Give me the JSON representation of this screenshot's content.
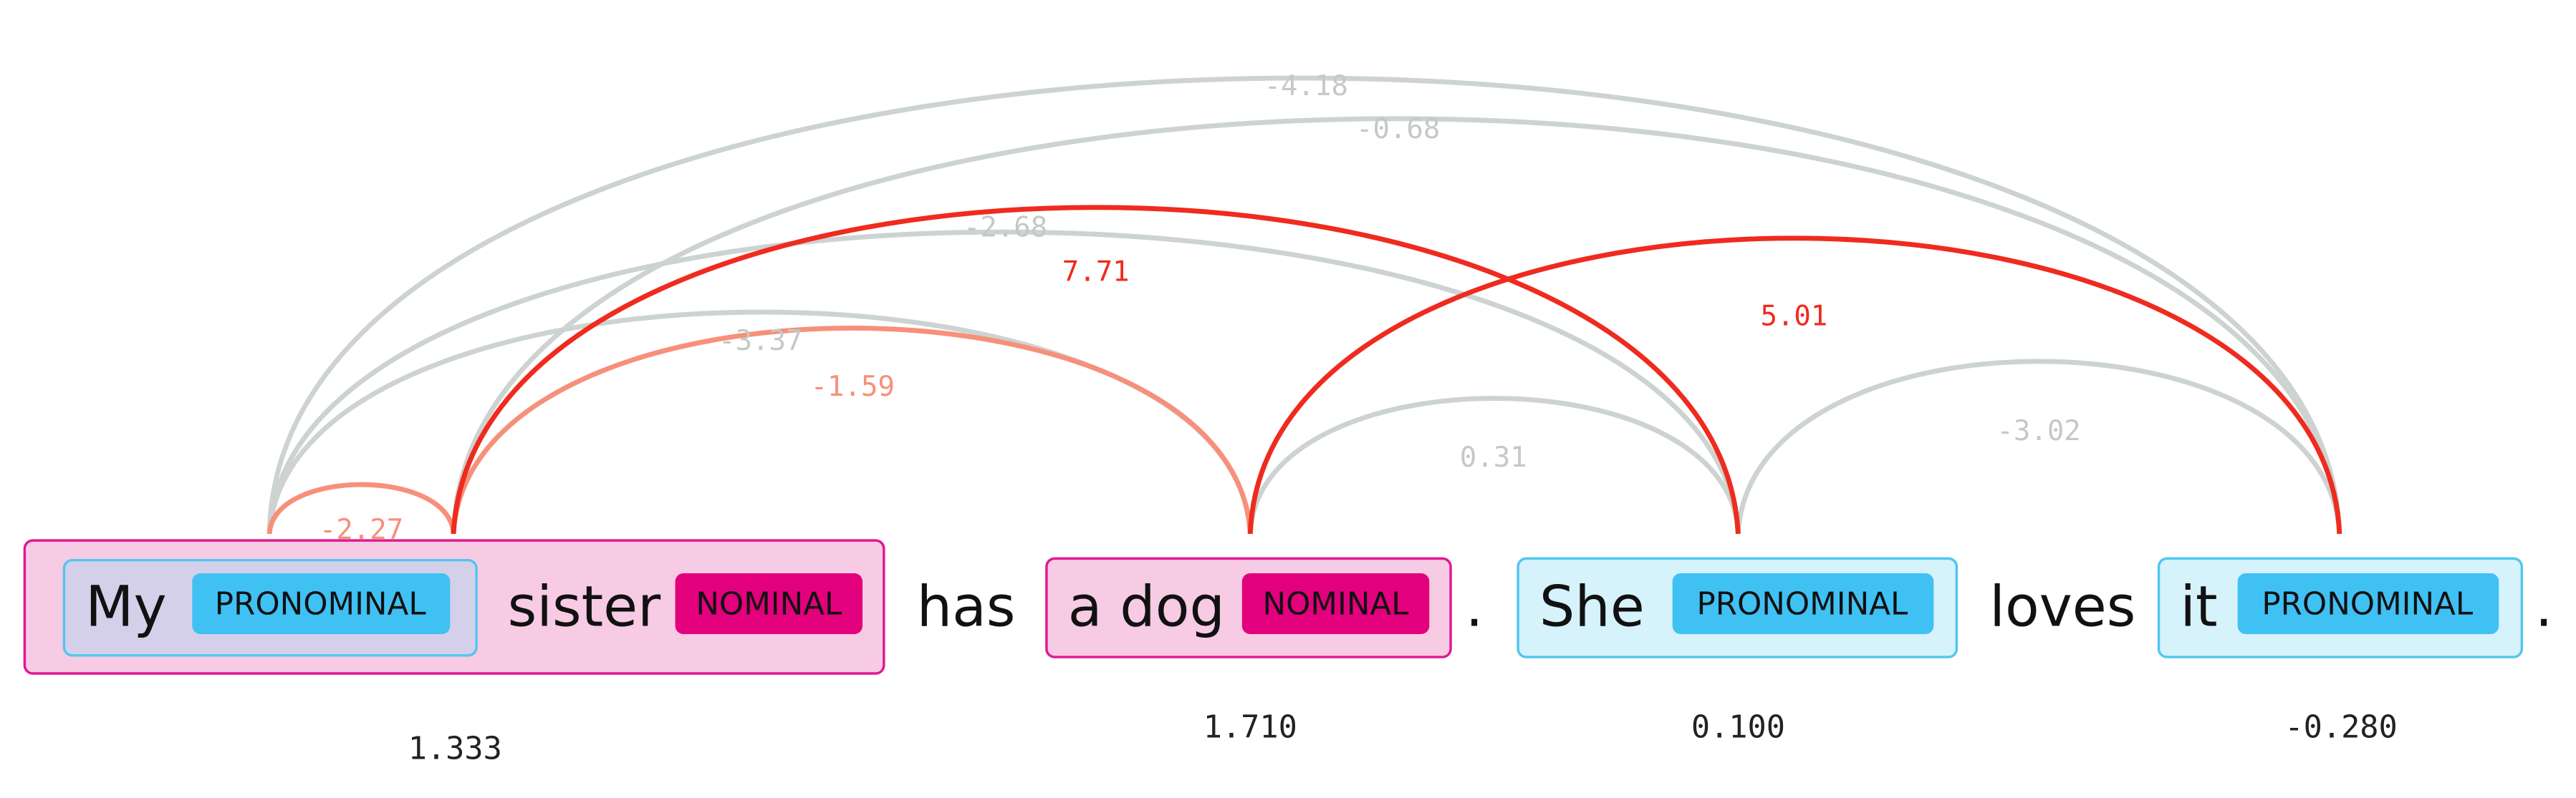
{
  "colors": {
    "arc_gray": "#ccd3d0",
    "arc_red": "#ef2b1f",
    "arc_salmon": "#f7907a",
    "label_gray": "#c4c9c6",
    "label_red": "#ef2b1f",
    "label_salmon": "#f7907a",
    "nominal_box_fill": "#f7cbe3",
    "nominal_box_stroke": "#e01894",
    "nominal_tag": "#e2007d",
    "pronominal_box_fill": "#d6f2fb",
    "pronominal_box_stroke": "#52c6ee",
    "pronominal_tag": "#40c1f4",
    "inner_pronominal_fill": "#d4d0ea"
  },
  "sentence": {
    "word_my": "My",
    "word_sister": "sister",
    "word_has": "has",
    "word_a_dog": "a dog",
    "period_1": ".",
    "word_she": "She",
    "word_loves": "loves",
    "word_it": "it",
    "period_2": "."
  },
  "tags": {
    "my": "PRONOMINAL",
    "my_sister": "NOMINAL",
    "a_dog": "NOMINAL",
    "she": "PRONOMINAL",
    "it": "PRONOMINAL"
  },
  "arcs": [
    {
      "label": "-4.18",
      "color": "gray"
    },
    {
      "label": "-0.68",
      "color": "gray"
    },
    {
      "label": "-2.68",
      "color": "gray"
    },
    {
      "label": "7.71",
      "color": "red"
    },
    {
      "label": "5.01",
      "color": "red"
    },
    {
      "label": "-3.37",
      "color": "gray"
    },
    {
      "label": "-1.59",
      "color": "salmon"
    },
    {
      "label": "0.31",
      "color": "gray"
    },
    {
      "label": "-3.02",
      "color": "gray"
    },
    {
      "label": "-2.27",
      "color": "salmon"
    }
  ],
  "scores": {
    "my_sister": "1.333",
    "a_dog": "1.710",
    "she": "0.100",
    "it": "-0.280"
  }
}
